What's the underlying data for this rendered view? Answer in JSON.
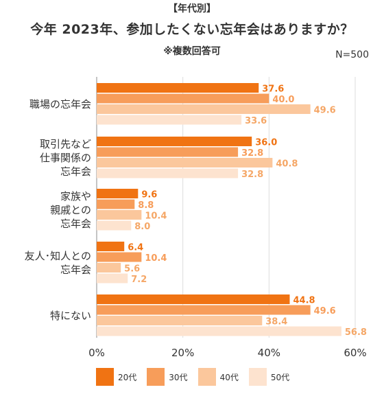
{
  "header": {
    "tag": "【年代別】",
    "title": "今年 2023年、参加したくない忘年会はありますか？",
    "note": "※複数回答可",
    "sample": "N=500"
  },
  "colors": {
    "series": [
      "#f07313",
      "#f79d5a",
      "#fbc79c",
      "#fde3cf"
    ],
    "grid": "#dddddd",
    "axis": "#888888"
  },
  "chart_data": {
    "type": "bar",
    "orientation": "horizontal",
    "categories": [
      [
        "職場の忘年会"
      ],
      [
        "取引先など",
        "仕事関係の",
        "忘年会"
      ],
      [
        "家族や",
        "親戚との",
        "忘年会"
      ],
      [
        "友人･知人との",
        "忘年会"
      ],
      [
        "特にない"
      ]
    ],
    "series": [
      {
        "name": "20代",
        "values": [
          37.6,
          36.0,
          9.6,
          6.4,
          44.8
        ]
      },
      {
        "name": "30代",
        "values": [
          40.0,
          32.8,
          8.8,
          10.4,
          49.6
        ]
      },
      {
        "name": "40代",
        "values": [
          49.6,
          40.8,
          10.4,
          5.6,
          38.4
        ]
      },
      {
        "name": "50代",
        "values": [
          33.6,
          32.8,
          8.0,
          7.2,
          56.8
        ]
      }
    ],
    "xlim": [
      0,
      60
    ],
    "xticks": [
      0,
      20,
      40,
      60
    ],
    "xtick_labels": [
      "0%",
      "20%",
      "40%",
      "60%"
    ],
    "grid": true,
    "legend": "bottom"
  }
}
